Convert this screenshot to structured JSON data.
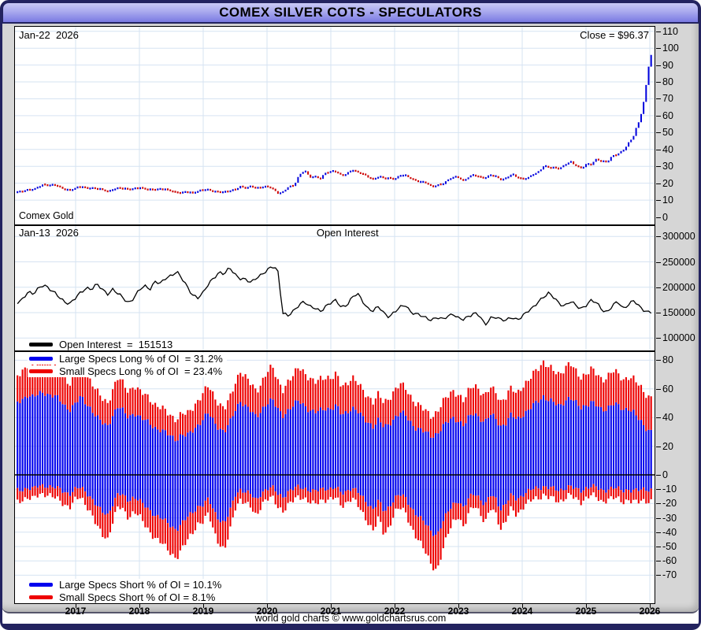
{
  "window_title": "COMEX SILVER COTS - SPECULATORS",
  "footer_credit": "world gold charts © www.goldchartsrus.com",
  "price_panel": {
    "date_label": "Jan-22  2026",
    "close_label": "Close = $96.37",
    "bottom_label": "Comex Gold"
  },
  "oi_panel": {
    "date_label": "Jan-13  2026",
    "panel_title": "Open Interest",
    "legend": {
      "label": "Open Interest  =  151513",
      "color": "#000000"
    }
  },
  "specs_panel": {
    "legends_top": [
      {
        "label": "Large Specs Long % of OI  = 31.2%",
        "color": "#0000ee"
      },
      {
        "label": "Small Specs Long % of OI  = 23.4%",
        "color": "#ee0000"
      }
    ],
    "legends_bottom": [
      {
        "label": "Large Specs Short % of OI = 10.1%",
        "color": "#0000ee"
      },
      {
        "label": "Small Specs Short % of OI = 8.1%",
        "color": "#ee0000"
      }
    ]
  },
  "x_axis": {
    "year_labels": [
      "2017",
      "2018",
      "2019",
      "2020",
      "2021",
      "2022",
      "2023",
      "2024",
      "2025",
      "2026"
    ]
  },
  "colors": {
    "candle_up": "#0000dd",
    "candle_down": "#cc0000",
    "bar_large": "#0000ee",
    "bar_small": "#ee0000",
    "oi_line": "#000000",
    "grid": "#d6e3f2",
    "zero_line": "#000000",
    "frame": "#23235f"
  },
  "chart_data": [
    {
      "type": "candlestick",
      "name": "COMEX Silver price (USD/oz)",
      "x_start_year": 2016.0,
      "x_step_years": 0.083333,
      "ylim": [
        0,
        110
      ],
      "yticks": [
        0,
        10,
        20,
        30,
        40,
        50,
        60,
        70,
        80,
        90,
        100,
        110
      ],
      "last_close": 96.37,
      "close": [
        14.1,
        14.7,
        15.4,
        16.2,
        16.0,
        17.8,
        19.5,
        18.7,
        18.9,
        17.6,
        16.4,
        15.9,
        17.0,
        17.9,
        17.2,
        17.2,
        16.6,
        16.1,
        15.2,
        16.4,
        17.0,
        16.7,
        16.5,
        16.9,
        17.2,
        16.4,
        16.3,
        16.4,
        16.4,
        16.1,
        15.5,
        14.5,
        14.3,
        14.7,
        14.2,
        15.5,
        16.0,
        15.9,
        15.1,
        15.0,
        14.6,
        15.3,
        16.3,
        18.3,
        17.0,
        18.1,
        17.0,
        17.9,
        18.0,
        16.7,
        14.0,
        15.0,
        17.9,
        18.2,
        24.4,
        28.3,
        23.5,
        23.7,
        22.6,
        26.4,
        27.0,
        26.7,
        24.4,
        25.9,
        28.0,
        26.2,
        25.5,
        23.9,
        22.1,
        23.9,
        22.8,
        23.3,
        22.4,
        24.4,
        24.6,
        23.1,
        21.5,
        20.4,
        20.2,
        17.9,
        19.0,
        19.2,
        21.8,
        24.0,
        23.6,
        20.9,
        24.1,
        25.1,
        23.6,
        22.8,
        24.8,
        24.2,
        22.2,
        22.8,
        25.3,
        23.8,
        22.5,
        22.9,
        25.0,
        26.8,
        30.4,
        29.1,
        28.9,
        28.8,
        31.2,
        32.7,
        30.4,
        28.9,
        31.3,
        31.1,
        34.1,
        32.9,
        33.0,
        36.1,
        36.9,
        39.8,
        44.0,
        48.5,
        56.5,
        70.0,
        96.37
      ]
    },
    {
      "type": "line",
      "name": "Open Interest",
      "units": "contracts",
      "scale": 1000,
      "x_start_year": 2016.0,
      "x_step_years": 0.083333,
      "ylim": [
        75000,
        323000
      ],
      "yticks": [
        100000,
        150000,
        200000,
        250000,
        300000
      ],
      "last_value": 151513,
      "values": [
        163,
        170,
        178,
        190,
        185,
        198,
        207,
        197,
        188,
        180,
        172,
        168,
        178,
        190,
        200,
        196,
        205,
        196,
        188,
        196,
        186,
        178,
        170,
        180,
        194,
        202,
        198,
        212,
        206,
        218,
        224,
        232,
        216,
        200,
        186,
        180,
        188,
        206,
        220,
        230,
        225,
        238,
        226,
        218,
        214,
        208,
        220,
        226,
        232,
        240,
        236,
        150,
        143,
        152,
        166,
        174,
        161,
        158,
        153,
        163,
        169,
        173,
        161,
        166,
        179,
        187,
        173,
        159,
        153,
        161,
        149,
        143,
        151,
        159,
        166,
        153,
        147,
        143,
        139,
        137,
        141,
        135,
        143,
        149,
        139,
        135,
        143,
        151,
        145,
        123,
        139,
        143,
        137,
        133,
        141,
        137,
        143,
        151,
        159,
        173,
        181,
        187,
        179,
        169,
        163,
        171,
        165,
        159,
        165,
        173,
        169,
        157,
        151,
        163,
        171,
        159,
        167,
        173,
        161,
        155,
        151.513
      ]
    },
    {
      "type": "bar",
      "name": "Speculator positions as % of Open Interest",
      "stacked": true,
      "mirrored": true,
      "x_start_year": 2016.0,
      "x_step_years": 0.083333,
      "ylim": [
        -88,
        87
      ],
      "yticks": [
        80,
        60,
        40,
        20,
        0,
        -10,
        -20,
        -30,
        -40,
        -50,
        -60,
        -70
      ],
      "series": [
        {
          "name": "Large Specs Long % of OI",
          "color": "#0000ee",
          "last": 31.2,
          "values": [
            48,
            50,
            53,
            56,
            54,
            56,
            58,
            56,
            55,
            52,
            48,
            46,
            50,
            54,
            50,
            46,
            40,
            36,
            34,
            42,
            48,
            44,
            40,
            44,
            40,
            38,
            36,
            33,
            31,
            29,
            27,
            25,
            28,
            27,
            31,
            35,
            39,
            43,
            37,
            33,
            30,
            36,
            45,
            52,
            48,
            44,
            40,
            46,
            50,
            52,
            46,
            42,
            45,
            48,
            52,
            49,
            45,
            43,
            45,
            47,
            46,
            48,
            42,
            44,
            47,
            44,
            40,
            37,
            34,
            38,
            33,
            36,
            40,
            43,
            42,
            37,
            33,
            31,
            29,
            27,
            29,
            33,
            37,
            40,
            38,
            34,
            40,
            44,
            40,
            36,
            42,
            40,
            34,
            36,
            42,
            39,
            42,
            44,
            48,
            52,
            55,
            52,
            50,
            48,
            52,
            54,
            50,
            47,
            49,
            51,
            48,
            45,
            47,
            50,
            48,
            45,
            47,
            44,
            38,
            33,
            31.2
          ]
        },
        {
          "name": "Small Specs Long % of OI",
          "color": "#ee0000",
          "last": 23.4,
          "values": [
            18,
            19,
            20,
            21,
            20,
            22,
            23,
            22,
            21,
            20,
            19,
            18,
            20,
            21,
            20,
            19,
            18,
            17,
            16,
            18,
            20,
            19,
            18,
            19,
            18,
            18,
            17,
            16,
            16,
            15,
            14,
            14,
            15,
            15,
            16,
            17,
            18,
            19,
            18,
            17,
            16,
            17,
            19,
            21,
            20,
            19,
            18,
            19,
            22,
            23,
            20,
            18,
            20,
            21,
            24,
            23,
            22,
            21,
            22,
            22,
            21,
            22,
            20,
            20,
            21,
            20,
            19,
            18,
            17,
            18,
            17,
            18,
            19,
            20,
            19,
            18,
            17,
            16,
            15,
            14,
            15,
            17,
            18,
            19,
            18,
            17,
            19,
            20,
            19,
            18,
            19,
            19,
            17,
            18,
            19,
            18,
            20,
            20,
            22,
            23,
            24,
            23,
            22,
            22,
            23,
            24,
            22,
            21,
            22,
            23,
            22,
            21,
            22,
            23,
            22,
            21,
            22,
            23,
            24,
            24,
            23.4
          ]
        },
        {
          "name": "Large Specs Short % of OI",
          "color": "#0000ee",
          "last": 10.1,
          "values": [
            12,
            11,
            10,
            9,
            10,
            8,
            7,
            8,
            9,
            10,
            12,
            13,
            10,
            9,
            12,
            16,
            22,
            26,
            28,
            20,
            13,
            15,
            18,
            15,
            18,
            22,
            25,
            28,
            30,
            33,
            36,
            38,
            34,
            30,
            26,
            22,
            21,
            17,
            25,
            31,
            34,
            26,
            14,
            10,
            12,
            14,
            18,
            12,
            10,
            9,
            13,
            15,
            12,
            10,
            8,
            9,
            11,
            12,
            10,
            9,
            10,
            9,
            13,
            11,
            9,
            12,
            16,
            20,
            24,
            18,
            26,
            22,
            16,
            14,
            16,
            22,
            27,
            31,
            35,
            40,
            42,
            34,
            26,
            20,
            18,
            24,
            16,
            12,
            16,
            22,
            14,
            16,
            24,
            20,
            14,
            17,
            14,
            12,
            10,
            9,
            8,
            9,
            10,
            11,
            9,
            8,
            10,
            11,
            9,
            8,
            9,
            11,
            10,
            9,
            10,
            11,
            10,
            11,
            11,
            10,
            10.1
          ]
        },
        {
          "name": "Small Specs Short % of OI",
          "color": "#ee0000",
          "last": 8.1,
          "values": [
            8,
            8,
            7,
            7,
            7,
            6,
            6,
            6,
            7,
            8,
            9,
            9,
            7,
            7,
            9,
            11,
            14,
            16,
            17,
            12,
            9,
            10,
            12,
            10,
            11,
            13,
            15,
            16,
            17,
            18,
            19,
            20,
            18,
            16,
            14,
            12,
            12,
            10,
            14,
            17,
            19,
            14,
            9,
            7,
            8,
            9,
            11,
            8,
            7,
            7,
            9,
            10,
            9,
            8,
            7,
            7,
            8,
            9,
            8,
            8,
            7,
            7,
            9,
            8,
            7,
            9,
            11,
            13,
            15,
            12,
            16,
            14,
            10,
            9,
            10,
            13,
            16,
            18,
            20,
            23,
            25,
            20,
            15,
            12,
            11,
            14,
            10,
            8,
            10,
            13,
            9,
            10,
            14,
            12,
            9,
            11,
            9,
            8,
            7,
            7,
            6,
            7,
            7,
            8,
            7,
            6,
            7,
            8,
            7,
            6,
            7,
            8,
            7,
            7,
            7,
            8,
            7,
            8,
            8,
            8,
            8.1
          ]
        }
      ]
    }
  ]
}
